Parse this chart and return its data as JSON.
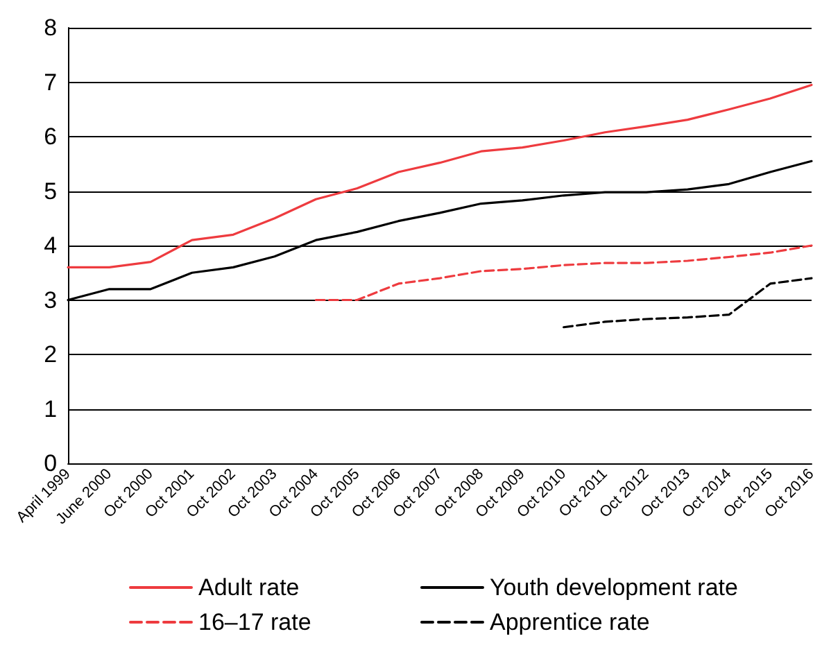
{
  "chart_data": {
    "type": "line",
    "categories": [
      "April 1999",
      "June 2000",
      "Oct 2000",
      "Oct 2001",
      "Oct 2002",
      "Oct 2003",
      "Oct 2004",
      "Oct 2005",
      "Oct 2006",
      "Oct 2007",
      "Oct 2008",
      "Oct 2009",
      "Oct 2010",
      "Oct 2011",
      "Oct 2012",
      "Oct 2013",
      "Oct 2014",
      "Oct 2015",
      "Oct 2016"
    ],
    "series": [
      {
        "name": "Adult rate",
        "color": "#ee3b3f",
        "line_style": "solid",
        "values": [
          3.6,
          3.6,
          3.7,
          4.1,
          4.2,
          4.5,
          4.85,
          5.05,
          5.35,
          5.52,
          5.73,
          5.8,
          5.93,
          6.08,
          6.19,
          6.31,
          6.5,
          6.7,
          6.95
        ]
      },
      {
        "name": "Youth development rate",
        "color": "#000000",
        "line_style": "solid",
        "values": [
          3.0,
          3.2,
          3.2,
          3.5,
          3.6,
          3.8,
          4.1,
          4.25,
          4.45,
          4.6,
          4.77,
          4.83,
          4.92,
          4.98,
          4.98,
          5.03,
          5.13,
          5.35,
          5.55
        ]
      },
      {
        "name": "16–17 rate",
        "color": "#ee3b3f",
        "line_style": "dashed",
        "values": [
          null,
          null,
          null,
          null,
          null,
          null,
          3.0,
          3.0,
          3.3,
          3.4,
          3.53,
          3.57,
          3.64,
          3.68,
          3.68,
          3.72,
          3.79,
          3.87,
          4.0
        ]
      },
      {
        "name": "Apprentice rate",
        "color": "#000000",
        "line_style": "dashed",
        "values": [
          null,
          null,
          null,
          null,
          null,
          null,
          null,
          null,
          null,
          null,
          null,
          null,
          2.5,
          2.6,
          2.65,
          2.68,
          2.73,
          3.3,
          3.4
        ]
      }
    ],
    "ylim": [
      0,
      8
    ],
    "yticks": [
      0,
      1,
      2,
      3,
      4,
      5,
      6,
      7,
      8
    ],
    "grid": "y",
    "legend": "bottom",
    "marker": "none"
  }
}
